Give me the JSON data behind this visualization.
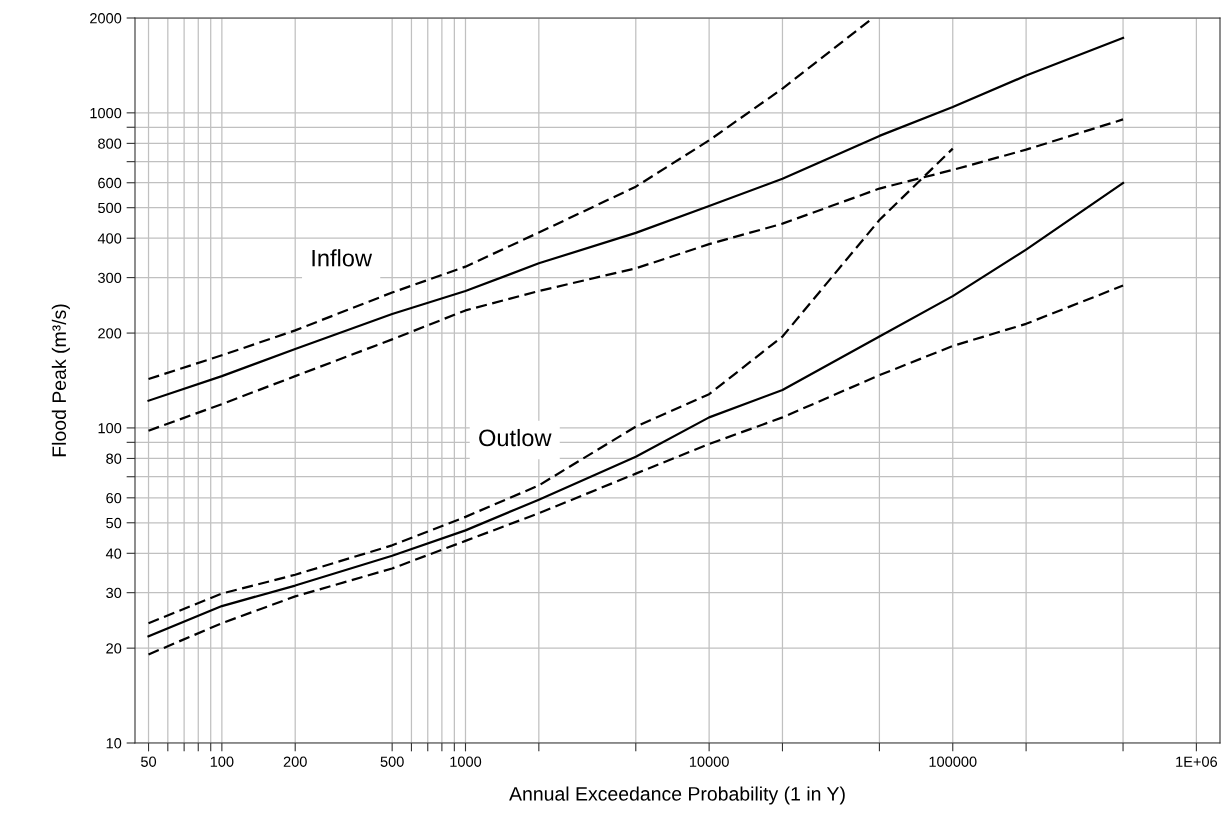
{
  "chart_data": {
    "type": "line",
    "xlabel": "Annual Exceedance Probability (1 in Y)",
    "ylabel": "Flood Peak (m³/s)",
    "x": [
      50,
      100,
      200,
      500,
      1000,
      2000,
      5000,
      10000,
      20000,
      50000,
      100000,
      200000,
      500000
    ],
    "series": [
      {
        "name": "Inflow",
        "color": "#000000",
        "line_style": "solid",
        "values": [
          122,
          146,
          178,
          230,
          272,
          333,
          416,
          506,
          618,
          845,
          1043,
          1313,
          1730
        ]
      },
      {
        "color": "#000000",
        "line_style": "dashed",
        "x": [
          50,
          100,
          200,
          500,
          1000,
          2000,
          5000,
          10000,
          20000,
          47000
        ],
        "values": [
          143,
          170,
          204,
          269,
          325,
          417,
          583,
          818,
          1194,
          2000
        ]
      },
      {
        "color": "#000000",
        "line_style": "dashed",
        "values": [
          98,
          119,
          146,
          191,
          236,
          272,
          321,
          383,
          445,
          575,
          659,
          764,
          953
        ]
      },
      {
        "name": "Outlow",
        "color": "#000000",
        "line_style": "solid",
        "values": [
          21.8,
          27.2,
          31.6,
          39.3,
          47.3,
          59.2,
          81,
          108,
          132,
          195,
          262,
          368,
          599
        ]
      },
      {
        "color": "#000000",
        "line_style": "dashed",
        "x": [
          50,
          100,
          200,
          500,
          1000,
          2000,
          5000,
          10000,
          20000,
          50000,
          100000
        ],
        "values": [
          24.0,
          29.8,
          34.2,
          42.4,
          52.2,
          65.7,
          101,
          128,
          195,
          457,
          770
        ]
      },
      {
        "color": "#000000",
        "line_style": "dashed",
        "values": [
          19.1,
          24.0,
          29.2,
          35.8,
          43.8,
          53.6,
          71.6,
          88.9,
          108,
          147,
          182,
          214,
          283
        ]
      }
    ],
    "xlim": [
      44,
      1250000
    ],
    "xticks": [
      50,
      {
        "value": 60,
        "label": null
      },
      {
        "value": 70,
        "label": null
      },
      {
        "value": 80,
        "label": null
      },
      {
        "value": 90,
        "label": null
      },
      100,
      200,
      500,
      {
        "value": 600,
        "label": null
      },
      {
        "value": 700,
        "label": null
      },
      {
        "value": 800,
        "label": null
      },
      {
        "value": 900,
        "label": null
      },
      1000,
      {
        "value": 2000,
        "label": null
      },
      {
        "value": 5000,
        "label": null
      },
      10000,
      {
        "value": 20000,
        "label": null
      },
      {
        "value": 50000,
        "label": null
      },
      100000,
      {
        "value": 200000,
        "label": null
      },
      {
        "value": 500000,
        "label": null
      },
      {
        "value": 1000000,
        "label": "1E+06"
      }
    ],
    "ylim": [
      10,
      2000
    ],
    "yticks": [
      10,
      20,
      30,
      40,
      50,
      60,
      {
        "value": 70,
        "label": null
      },
      80,
      {
        "value": 90,
        "label": null
      },
      100,
      200,
      300,
      400,
      500,
      600,
      {
        "value": 700,
        "label": null
      },
      800,
      {
        "value": 900,
        "label": null
      },
      1000,
      2000
    ],
    "log": "xy",
    "grid": true,
    "legend": false,
    "marker": "none"
  }
}
